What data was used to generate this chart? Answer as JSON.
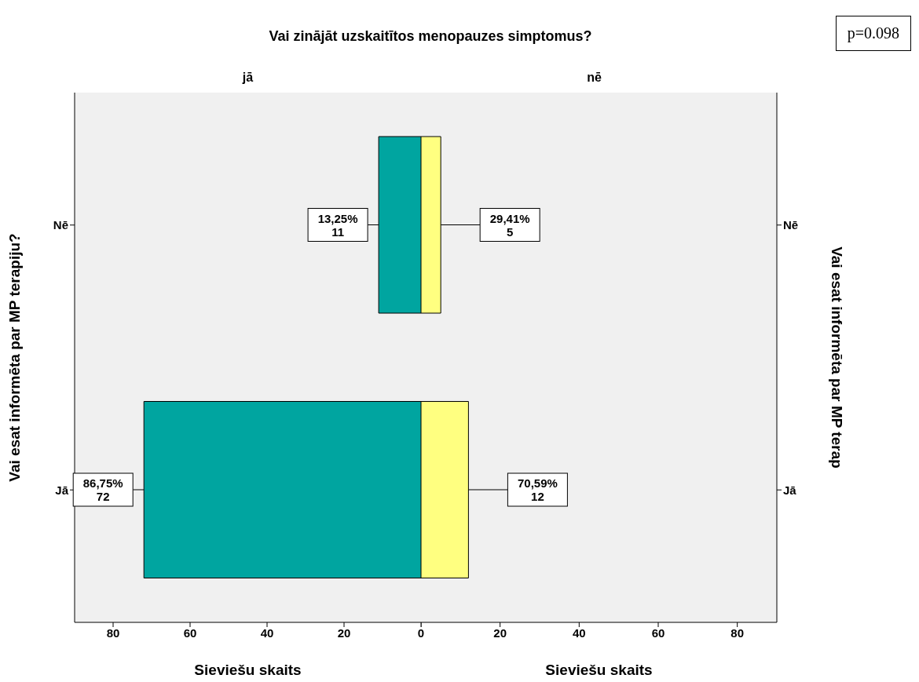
{
  "chart_data": [
    {
      "type": "bar",
      "orientation": "horizontal",
      "title": "Vai zinājāt uzskaitītos menopauzes simptomus?",
      "subtitle": "jā",
      "ylabel": "Vai esat informēta par MP terapiju?",
      "xlabel": "Sieviešu skaits",
      "categories": [
        "Nē",
        "Jā"
      ],
      "values": [
        11,
        72
      ],
      "color": "#00a5a0",
      "value_labels": [
        "13,25%\n11",
        "86,75%\n72"
      ],
      "xlim": [
        90,
        0
      ],
      "xticks": [
        80,
        60,
        40,
        20,
        0
      ]
    },
    {
      "type": "bar",
      "orientation": "horizontal",
      "subtitle": "nē",
      "y2label": "Vai esat informēta par MP terap",
      "xlabel": "Sieviešu skaits",
      "categories": [
        "Nē",
        "Jā"
      ],
      "values": [
        5,
        12
      ],
      "color": "#ffff80",
      "value_labels": [
        "29,41%\n5",
        "70,59%\n12"
      ],
      "xlim": [
        0,
        90
      ],
      "xticks": [
        {
          "value": 0,
          "label": null
        },
        20,
        40,
        60,
        80
      ],
      "annotations": [
        "p=0.098"
      ]
    }
  ]
}
